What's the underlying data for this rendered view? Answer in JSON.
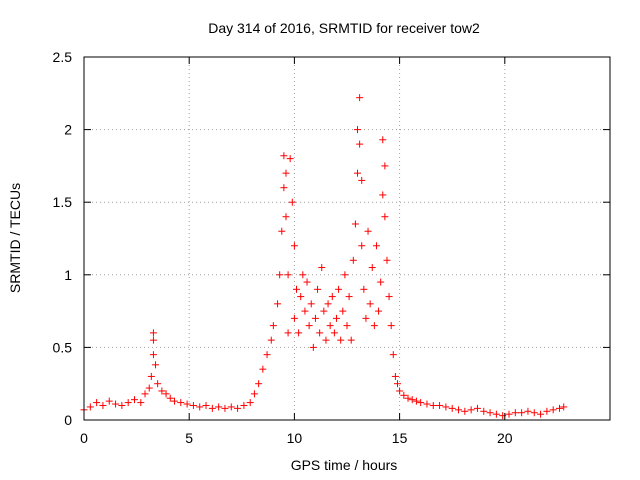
{
  "chart_data": {
    "type": "scatter",
    "title": "Day 314 of 2016, SRMTID for receiver tow2",
    "xlabel": "GPS time / hours",
    "ylabel": "SRMTID / TECUs",
    "xlim": [
      0,
      25
    ],
    "ylim": [
      0,
      2.5
    ],
    "x_ticks": [
      0,
      5,
      10,
      15,
      20
    ],
    "x_tick_labels": [
      "0",
      "5",
      "10",
      "15",
      "20"
    ],
    "y_ticks": [
      0,
      0.5,
      1,
      1.5,
      2,
      2.5
    ],
    "y_tick_labels": [
      "0",
      "0.5",
      "1",
      "1.5",
      "2",
      "2.5"
    ],
    "grid": true,
    "marker": "+",
    "color": "#ff0000",
    "series": [
      {
        "name": "SRMTID",
        "x": [
          0.0,
          0.3,
          0.6,
          0.9,
          1.2,
          1.5,
          1.8,
          2.1,
          2.4,
          2.7,
          2.9,
          3.1,
          3.2,
          3.3,
          3.3,
          3.3,
          3.4,
          3.5,
          3.7,
          3.9,
          4.1,
          4.3,
          4.6,
          4.9,
          5.2,
          5.5,
          5.8,
          6.1,
          6.4,
          6.7,
          7.0,
          7.3,
          7.6,
          7.9,
          8.1,
          8.3,
          8.5,
          8.7,
          8.9,
          9.0,
          9.2,
          9.3,
          9.4,
          9.5,
          9.5,
          9.6,
          9.6,
          9.7,
          9.7,
          9.8,
          9.9,
          10.0,
          10.0,
          10.1,
          10.2,
          10.3,
          10.4,
          10.5,
          10.6,
          10.7,
          10.8,
          10.9,
          11.0,
          11.1,
          11.2,
          11.3,
          11.4,
          11.5,
          11.6,
          11.7,
          11.8,
          11.9,
          12.0,
          12.1,
          12.2,
          12.3,
          12.4,
          12.5,
          12.6,
          12.7,
          12.8,
          12.9,
          13.0,
          13.0,
          13.1,
          13.1,
          13.2,
          13.2,
          13.3,
          13.4,
          13.5,
          13.6,
          13.7,
          13.8,
          13.9,
          14.0,
          14.1,
          14.2,
          14.2,
          14.3,
          14.3,
          14.4,
          14.5,
          14.6,
          14.7,
          14.8,
          14.9,
          15.0,
          15.2,
          15.4,
          15.6,
          15.8,
          16.0,
          16.3,
          16.6,
          16.9,
          17.2,
          17.5,
          17.8,
          18.1,
          18.4,
          18.7,
          19.0,
          19.3,
          19.6,
          19.9,
          20.2,
          20.5,
          20.8,
          21.1,
          21.4,
          21.7,
          22.0,
          22.3,
          22.6,
          22.8
        ],
        "values": [
          0.07,
          0.09,
          0.12,
          0.1,
          0.13,
          0.11,
          0.1,
          0.12,
          0.14,
          0.12,
          0.18,
          0.22,
          0.3,
          0.45,
          0.6,
          0.55,
          0.38,
          0.25,
          0.2,
          0.18,
          0.15,
          0.13,
          0.12,
          0.11,
          0.1,
          0.09,
          0.1,
          0.08,
          0.09,
          0.08,
          0.09,
          0.08,
          0.1,
          0.12,
          0.18,
          0.25,
          0.35,
          0.45,
          0.55,
          0.65,
          0.8,
          1.0,
          1.3,
          1.6,
          1.82,
          1.7,
          1.4,
          1.0,
          0.6,
          1.8,
          1.5,
          1.2,
          0.7,
          0.9,
          0.6,
          0.85,
          1.0,
          0.75,
          0.95,
          0.65,
          0.8,
          0.5,
          0.7,
          0.9,
          0.6,
          1.05,
          0.75,
          0.55,
          0.8,
          0.65,
          0.85,
          0.6,
          0.7,
          0.9,
          0.55,
          0.75,
          1.0,
          0.65,
          0.85,
          0.55,
          1.1,
          1.35,
          1.7,
          2.0,
          2.22,
          1.9,
          1.65,
          1.2,
          0.9,
          0.7,
          1.3,
          0.8,
          1.05,
          0.65,
          1.2,
          0.75,
          0.95,
          1.55,
          1.93,
          1.75,
          1.4,
          1.1,
          0.85,
          0.65,
          0.45,
          0.3,
          0.25,
          0.2,
          0.17,
          0.15,
          0.14,
          0.13,
          0.12,
          0.11,
          0.1,
          0.1,
          0.09,
          0.08,
          0.07,
          0.06,
          0.07,
          0.08,
          0.06,
          0.05,
          0.04,
          0.03,
          0.04,
          0.05,
          0.05,
          0.06,
          0.05,
          0.04,
          0.06,
          0.07,
          0.08,
          0.09
        ]
      }
    ]
  }
}
